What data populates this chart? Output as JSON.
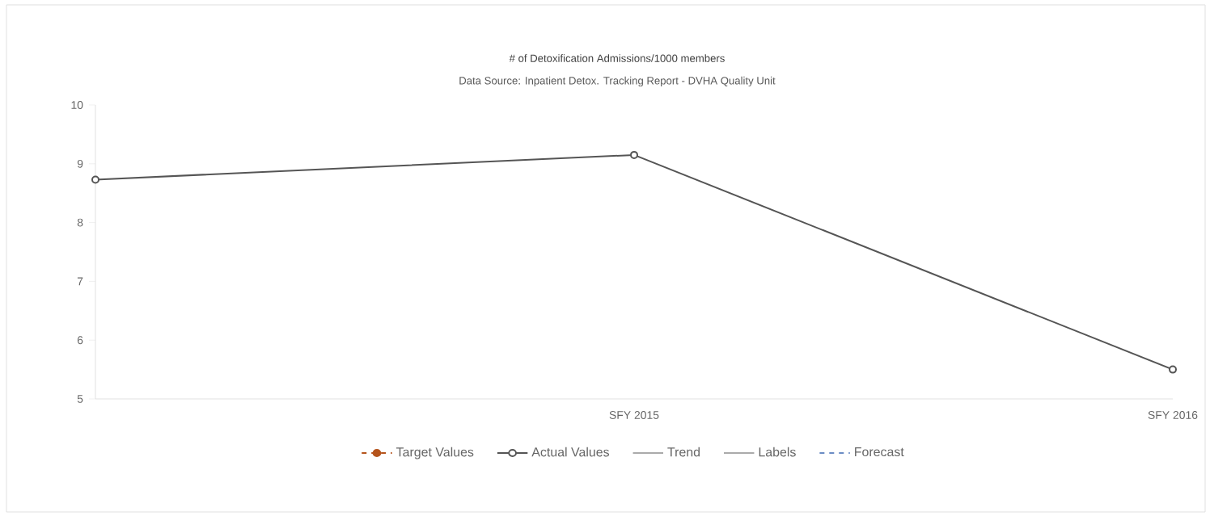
{
  "chart_data": {
    "type": "line",
    "title": "# of Detoxification Admissions/1000 members",
    "subtitle": "Data Source: Inpatient Detox. Tracking Report - DVHA Quality Unit",
    "categories": [
      null,
      "SFY 2015",
      "SFY 2016"
    ],
    "series": [
      {
        "name": "Target Values",
        "color": "#b5541c",
        "marker": "circle",
        "line_style": "dashed",
        "values": [
          null,
          null,
          null
        ]
      },
      {
        "name": "Actual Values",
        "color": "#555555",
        "marker": "circle",
        "line_style": "solid",
        "values": [
          8.73,
          9.15,
          5.5
        ]
      },
      {
        "name": "Trend",
        "color": "#aaaaaa",
        "marker": "none",
        "line_style": "solid",
        "values": [
          null,
          null,
          null
        ]
      },
      {
        "name": "Labels",
        "color": "#aaaaaa",
        "marker": "none",
        "line_style": "solid",
        "values": [
          null,
          null,
          null
        ]
      },
      {
        "name": "Forecast",
        "color": "#6b8cc4",
        "marker": "none",
        "line_style": "dashed",
        "values": [
          null,
          null,
          null
        ]
      }
    ],
    "ylim": [
      5,
      10
    ],
    "yticks": [
      5,
      6,
      7,
      8,
      9,
      10
    ],
    "grid": false,
    "legend": "bottom"
  }
}
